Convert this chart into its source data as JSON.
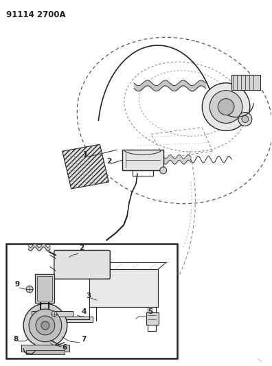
{
  "title_text": "91114 2700A",
  "bg_color": "#ffffff",
  "fig_width": 3.96,
  "fig_height": 5.33,
  "dpi": 100,
  "lc": "#222222",
  "lc_light": "#888888",
  "lc_dash": "#555555",
  "title_fontsize": 8.5,
  "title_fontweight": "bold",
  "label_fontsize": 7.5,
  "labels": [
    "1",
    "2",
    "3",
    "4",
    "5",
    "6",
    "7",
    "8",
    "9"
  ]
}
